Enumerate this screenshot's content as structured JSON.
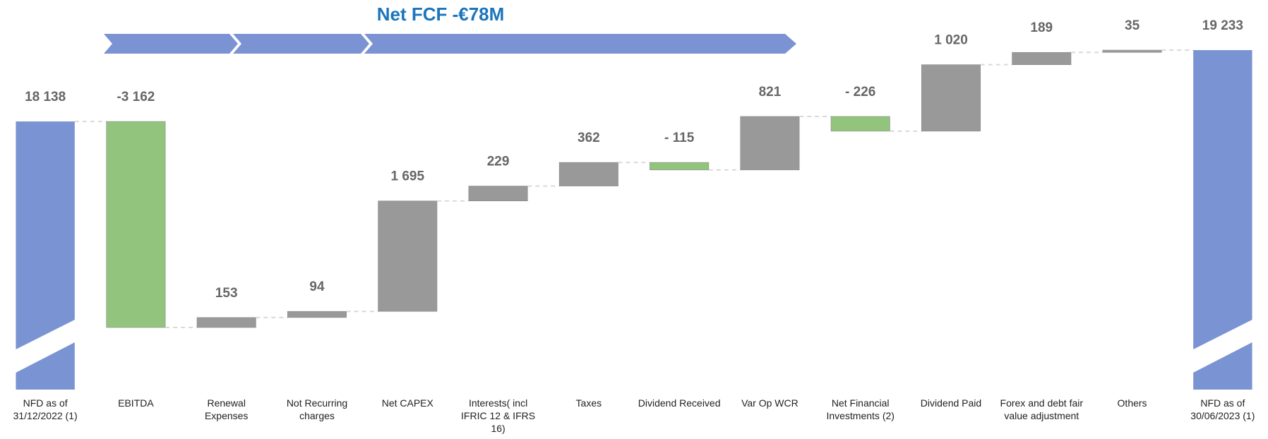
{
  "chart_data": {
    "type": "waterfall",
    "title": "Net FCF -€78M",
    "categories": [
      "NFD as of 31/12/2022 (1)",
      "EBITDA",
      "Renewal Expenses",
      "Not Recurring charges",
      "Net CAPEX",
      "Interests( incl IFRIC 12 & IFRS 16)",
      "Taxes",
      "Dividend Received",
      "Var Op WCR",
      "Net Financial Investments (2)",
      "Dividend Paid",
      "Forex and debt fair value adjustment",
      "Others",
      "NFD as of 30/06/2023 (1)"
    ],
    "values": [
      18138,
      -3162,
      153,
      94,
      1695,
      229,
      362,
      -115,
      821,
      -226,
      1020,
      189,
      35,
      19233
    ],
    "value_labels": [
      "18 138",
      "-3 162",
      "153",
      "94",
      "1 695",
      "229",
      "362",
      "- 115",
      "821",
      "- 226",
      "1 020",
      "189",
      "35",
      "19 233"
    ],
    "measures": [
      "total",
      "relative",
      "relative",
      "relative",
      "relative",
      "relative",
      "relative",
      "relative",
      "relative",
      "relative",
      "relative",
      "relative",
      "relative",
      "total"
    ],
    "colors": [
      "#7a93d2",
      "#93c47d",
      "#999999",
      "#999999",
      "#999999",
      "#999999",
      "#999999",
      "#93c47d",
      "#999999",
      "#93c47d",
      "#999999",
      "#999999",
      "#999999",
      "#7a93d2"
    ]
  }
}
